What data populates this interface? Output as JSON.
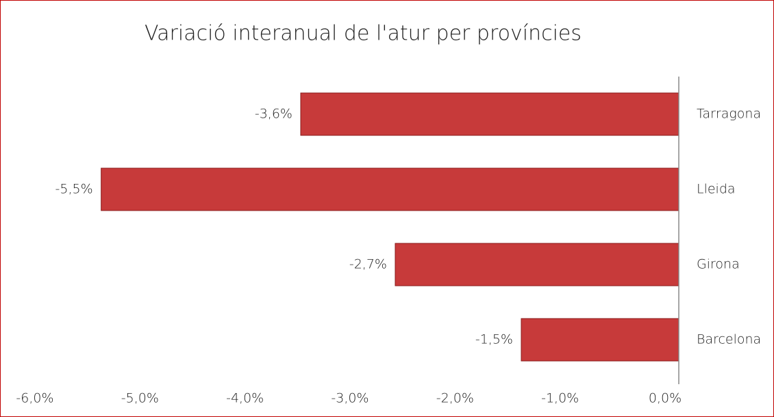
{
  "chart_data": {
    "type": "barh",
    "title": "Variació interanual de l'atur per províncies",
    "categories": [
      "Tarragona",
      "Lleida",
      "Girona",
      "Barcelona"
    ],
    "values": [
      -3.6,
      -5.5,
      -2.7,
      -1.5
    ],
    "value_labels": [
      "-3,6%",
      "-5,5%",
      "-2,7%",
      "-1,5%"
    ],
    "color": "#c73a3a",
    "xlim": [
      -6,
      0
    ],
    "xticks": [
      {
        "value": -6,
        "label": "-6,0%"
      },
      {
        "value": -5,
        "label": "-5,0%"
      },
      {
        "value": -4,
        "label": "-4,0%"
      },
      {
        "value": -3,
        "label": "-3,0%"
      },
      {
        "value": -2,
        "label": "-2,0%"
      },
      {
        "value": -1,
        "label": "-1,0%"
      },
      {
        "value": 0,
        "label": "0,0%"
      }
    ],
    "grid": false
  }
}
